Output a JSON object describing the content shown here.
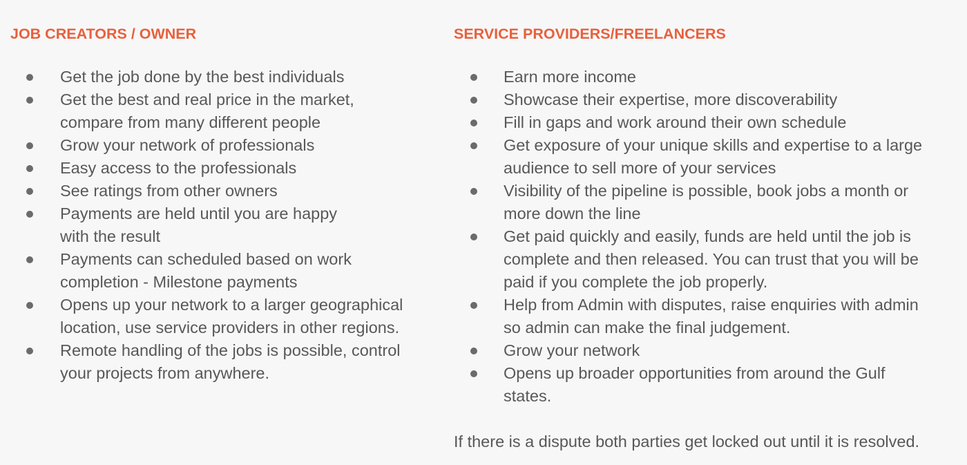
{
  "left": {
    "heading": "JOB CREATORS / OWNER",
    "items": [
      "Get the job done by the best individuals",
      "Get the best and real price in the market, compare from many different people",
      "Grow your network of professionals",
      "Easy access to the professionals",
      "See ratings from other owners",
      "Payments are held until you are happy with the result",
      "Payments can scheduled based on work completion - Milestone payments",
      "Opens up your network to a larger geographical location, use service providers in other regions.",
      "Remote handling of the jobs is possible, control your projects from anywhere."
    ]
  },
  "right": {
    "heading": "SERVICE PROVIDERS/FREELANCERS",
    "items": [
      "Earn more income",
      "Showcase their expertise, more discoverability",
      "Fill in gaps and work around their own schedule",
      "Get exposure of your unique skills and expertise to a large audience to sell more of your services",
      "Visibility of the pipeline is possible, book jobs a month or more down the line",
      "Get paid quickly and easily, funds are held until the job is complete and then released. You can trust that you will be paid if you complete the job properly.",
      "Help from Admin with disputes, raise enquiries with admin so admin can make the final judgement.",
      "Grow your network",
      "Opens up broader opportunities from around the Gulf states."
    ],
    "note": "If there is a dispute both parties get locked out until it is resolved."
  }
}
